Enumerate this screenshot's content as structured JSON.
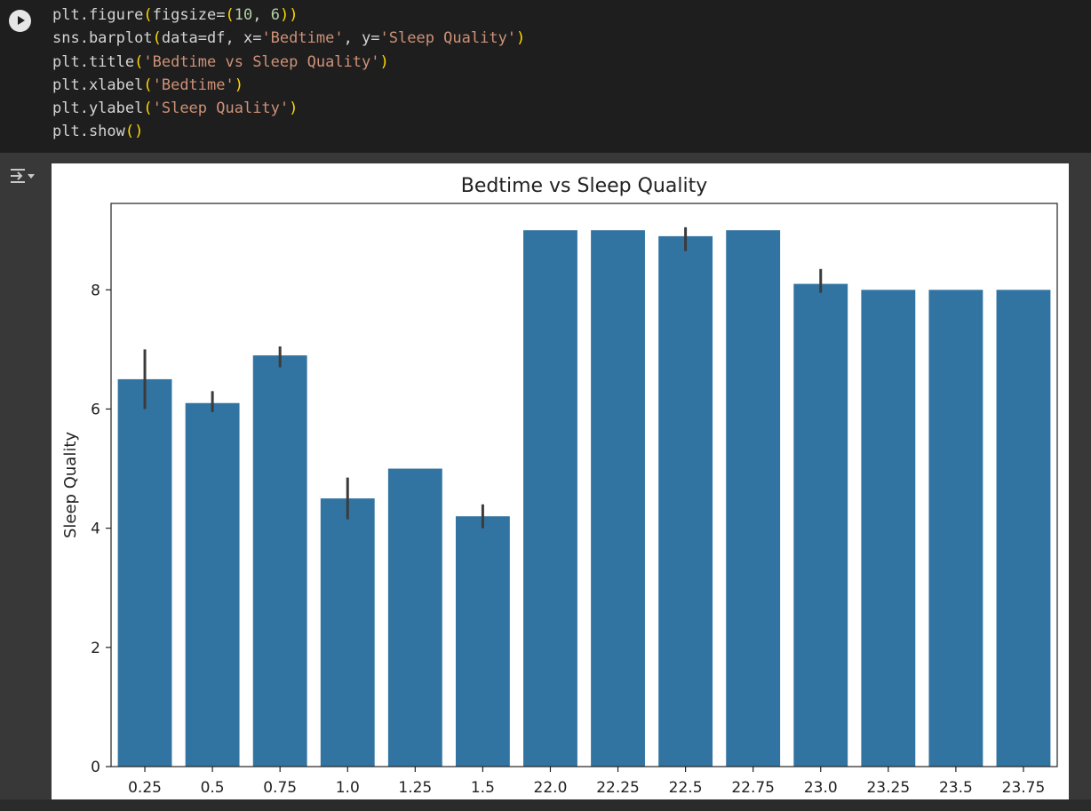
{
  "code_lines": [
    "plt.figure(figsize=(10, 6))",
    "sns.barplot(data=df, x='Bedtime', y='Sleep Quality')",
    "plt.title('Bedtime vs Sleep Quality')",
    "plt.xlabel('Bedtime')",
    "plt.ylabel('Sleep Quality')",
    "plt.show()"
  ],
  "icons": {
    "run": "play-icon",
    "output_toggle": "output-toggle-icon"
  },
  "colors": {
    "bar": "#3274a1",
    "error_bar": "#3b3b3b",
    "editor_bg": "#1e1e1e",
    "string": "#ce9178",
    "paren": "#ffd700",
    "number": "#b5cea8"
  },
  "chart_data": {
    "type": "bar",
    "title": "Bedtime vs Sleep Quality",
    "xlabel": "",
    "ylabel": "Sleep Quality",
    "categories": [
      "0.25",
      "0.5",
      "0.75",
      "1.0",
      "1.25",
      "1.5",
      "22.0",
      "22.25",
      "22.5",
      "22.75",
      "23.0",
      "23.25",
      "23.5",
      "23.75"
    ],
    "values": [
      6.5,
      6.1,
      6.9,
      4.5,
      5.0,
      4.2,
      9.0,
      9.0,
      8.9,
      9.0,
      8.1,
      8.0,
      8.0,
      8.0
    ],
    "error_low": [
      6.0,
      5.95,
      6.7,
      4.15,
      null,
      4.0,
      null,
      null,
      8.65,
      null,
      7.95,
      null,
      null,
      null
    ],
    "error_high": [
      7.0,
      6.3,
      7.05,
      4.85,
      null,
      4.4,
      null,
      null,
      9.05,
      null,
      8.35,
      null,
      null,
      null
    ],
    "yticks": [
      0,
      2,
      4,
      6,
      8
    ],
    "ylim": [
      0,
      9.45
    ],
    "grid": false,
    "legend": "none"
  }
}
